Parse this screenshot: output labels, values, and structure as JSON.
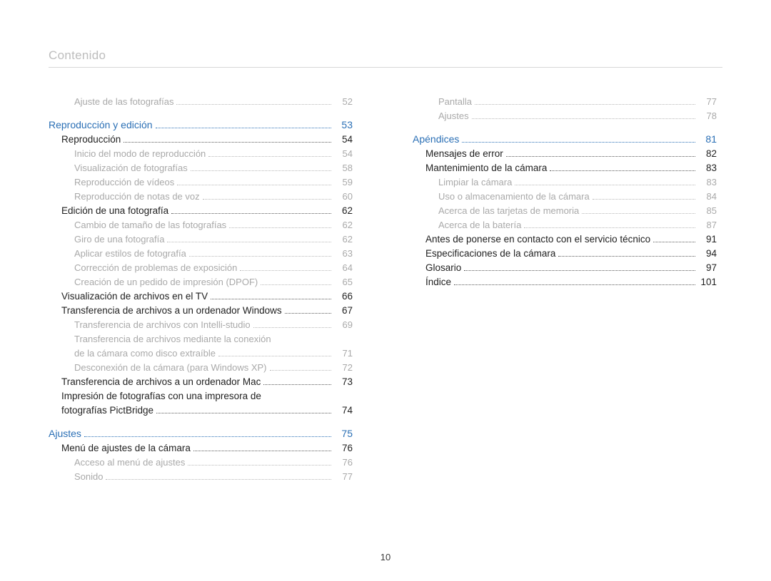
{
  "header": {
    "title": "Contenido"
  },
  "footer": {
    "page_number": "10"
  },
  "colors": {
    "section": "#2a6fb5",
    "level1": "#1f1f1f",
    "level2": "#a9a9a9",
    "header_gray": "#bdbdbd",
    "rule": "#d7d7d7"
  },
  "columns": {
    "left": [
      {
        "label": "Ajuste de las fotografías",
        "page": "52",
        "level": "lvl-2",
        "indent": 2
      },
      {
        "gap": true
      },
      {
        "label": "Reproducción y edición",
        "page": "53",
        "level": "lvl-section",
        "indent": 0
      },
      {
        "label": "Reproducción",
        "page": "54",
        "level": "lvl-1",
        "indent": 1
      },
      {
        "label": "Inicio del modo de reproducción",
        "page": "54",
        "level": "lvl-2",
        "indent": 2
      },
      {
        "label": "Visualización de fotografías",
        "page": "58",
        "level": "lvl-2",
        "indent": 2
      },
      {
        "label": "Reproducción de vídeos",
        "page": "59",
        "level": "lvl-2",
        "indent": 2
      },
      {
        "label": "Reproducción de notas de voz",
        "page": "60",
        "level": "lvl-2",
        "indent": 2
      },
      {
        "label": "Edición de una fotografía",
        "page": "62",
        "level": "lvl-1",
        "indent": 1
      },
      {
        "label": "Cambio de tamaño de las fotografías",
        "page": "62",
        "level": "lvl-2",
        "indent": 2
      },
      {
        "label": "Giro de una fotografía",
        "page": "62",
        "level": "lvl-2",
        "indent": 2
      },
      {
        "label": "Aplicar estilos de fotografía",
        "page": "63",
        "level": "lvl-2",
        "indent": 2
      },
      {
        "label": "Corrección de problemas de exposición",
        "page": "64",
        "level": "lvl-2",
        "indent": 2
      },
      {
        "label": "Creación de un pedido de impresión (DPOF)",
        "page": "65",
        "level": "lvl-2",
        "indent": 2
      },
      {
        "label": "Visualización de archivos en el TV",
        "page": "66",
        "level": "lvl-1",
        "indent": 1
      },
      {
        "label": "Transferencia de archivos a un ordenador Windows",
        "page": "67",
        "level": "lvl-1",
        "indent": 1
      },
      {
        "label": "Transferencia de archivos con Intelli-studio",
        "page": "69",
        "level": "lvl-2",
        "indent": 2
      },
      {
        "label_pre": "Transferencia de archivos mediante la conexión",
        "label": "de la cámara como disco extraíble",
        "page": "71",
        "level": "lvl-2",
        "indent": 2,
        "multiline": true
      },
      {
        "label": "Desconexión de la cámara (para Windows XP)",
        "page": "72",
        "level": "lvl-2",
        "indent": 2
      },
      {
        "label": "Transferencia de archivos a un ordenador Mac",
        "page": "73",
        "level": "lvl-1",
        "indent": 1
      },
      {
        "label_pre": "Impresión de fotografías con una impresora de",
        "label": "fotografías PictBridge",
        "page": "74",
        "level": "lvl-1",
        "indent": 1,
        "multiline": true
      },
      {
        "gap": true
      },
      {
        "label": "Ajustes",
        "page": "75",
        "level": "lvl-section",
        "indent": 0
      },
      {
        "label": "Menú de ajustes de la cámara",
        "page": "76",
        "level": "lvl-1",
        "indent": 1
      },
      {
        "label": "Acceso al menú de ajustes",
        "page": "76",
        "level": "lvl-2",
        "indent": 2
      },
      {
        "label": "Sonido",
        "page": "77",
        "level": "lvl-2",
        "indent": 2
      }
    ],
    "right": [
      {
        "label": "Pantalla",
        "page": "77",
        "level": "lvl-2",
        "indent": 2
      },
      {
        "label": "Ajustes",
        "page": "78",
        "level": "lvl-2",
        "indent": 2
      },
      {
        "gap": true
      },
      {
        "label": "Apéndices",
        "page": "81",
        "level": "lvl-section",
        "indent": 0
      },
      {
        "label": "Mensajes de error",
        "page": "82",
        "level": "lvl-1",
        "indent": 1
      },
      {
        "label": "Mantenimiento de la cámara",
        "page": "83",
        "level": "lvl-1",
        "indent": 1
      },
      {
        "label": "Limpiar la cámara",
        "page": "83",
        "level": "lvl-2",
        "indent": 2
      },
      {
        "label": "Uso o almacenamiento de la cámara",
        "page": "84",
        "level": "lvl-2",
        "indent": 2
      },
      {
        "label": "Acerca de las tarjetas de memoria",
        "page": "85",
        "level": "lvl-2",
        "indent": 2
      },
      {
        "label": "Acerca de la batería",
        "page": "87",
        "level": "lvl-2",
        "indent": 2
      },
      {
        "label": "Antes de ponerse en contacto con el servicio técnico",
        "page": "91",
        "level": "lvl-1",
        "indent": 1
      },
      {
        "label": "Especificaciones de la cámara",
        "page": "94",
        "level": "lvl-1",
        "indent": 1
      },
      {
        "label": "Glosario",
        "page": "97",
        "level": "lvl-1",
        "indent": 1
      },
      {
        "label": "Índice",
        "page": "101",
        "level": "lvl-1",
        "indent": 1
      }
    ]
  }
}
